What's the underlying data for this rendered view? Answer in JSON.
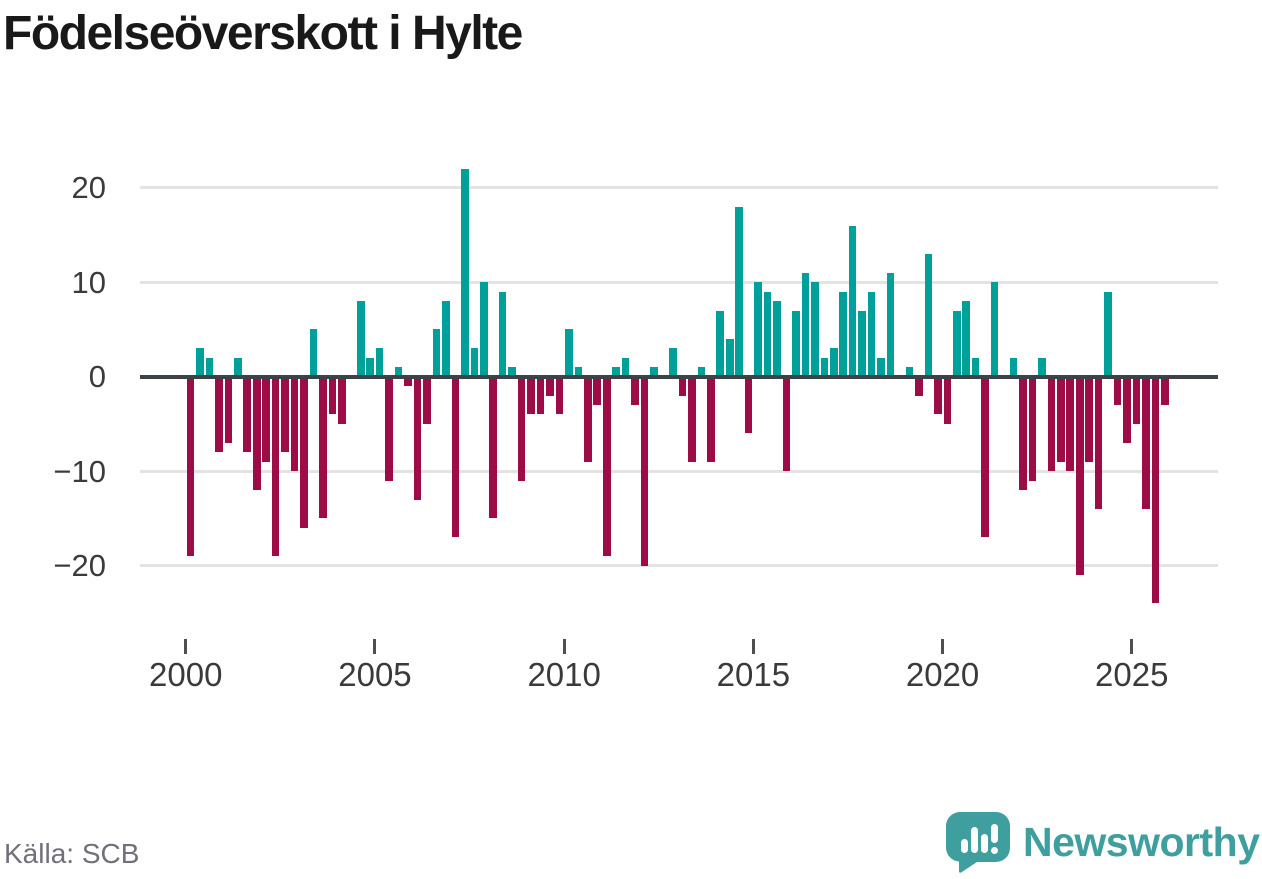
{
  "title": "Födelseöverskott i Hylte",
  "source": "Källa: SCB",
  "logo": {
    "text": "Newsworthy",
    "icon": "newsworthy-speech-bubble-barchart-icon"
  },
  "colors": {
    "positive": "#00a09a",
    "negative": "#9d0c47",
    "axis": "#3d4247",
    "grid": "#e3e3e3",
    "brand": "#3f9e9e",
    "title_text": "#191919",
    "tick_text": "#3a3a3a",
    "source_text": "#70707a"
  },
  "chart_data": {
    "type": "bar",
    "title": "Födelseöverskott i Hylte",
    "xlabel": "",
    "ylabel": "",
    "start_period": "2000Q1",
    "frequency": "quarterly",
    "y_tick_labels": [
      "20",
      "10",
      "0",
      "−10",
      "−20"
    ],
    "y_ticks": [
      20,
      10,
      0,
      -10,
      -20
    ],
    "ylim": [
      -25,
      23
    ],
    "x_tick_labels": [
      "2000",
      "2005",
      "2010",
      "2015",
      "2020",
      "2025"
    ],
    "grid": true,
    "legend": false,
    "series": [
      {
        "name": "Födelseöverskott per kvartal",
        "values": [
          -19,
          3,
          2,
          -8,
          -7,
          2,
          -8,
          -12,
          -9,
          -19,
          -8,
          -10,
          -16,
          5,
          -15,
          -4,
          -5,
          0,
          8,
          2,
          3,
          -11,
          1,
          -1,
          -13,
          -5,
          5,
          8,
          -17,
          22,
          3,
          10,
          -15,
          9,
          1,
          -11,
          -4,
          -4,
          -2,
          -4,
          5,
          1,
          -9,
          -3,
          -19,
          1,
          2,
          -3,
          -20,
          1,
          0,
          3,
          -2,
          -9,
          1,
          -9,
          7,
          4,
          18,
          -6,
          10,
          9,
          8,
          -10,
          7,
          11,
          10,
          2,
          3,
          9,
          16,
          7,
          9,
          2,
          11,
          0,
          1,
          -2,
          13,
          -4,
          -5,
          7,
          8,
          2,
          -17,
          10,
          0,
          2,
          -12,
          -11,
          2,
          -10,
          -9,
          -10,
          -21,
          -9,
          -14,
          9,
          -3,
          -7,
          -5,
          -14,
          -24,
          -3
        ]
      }
    ]
  }
}
